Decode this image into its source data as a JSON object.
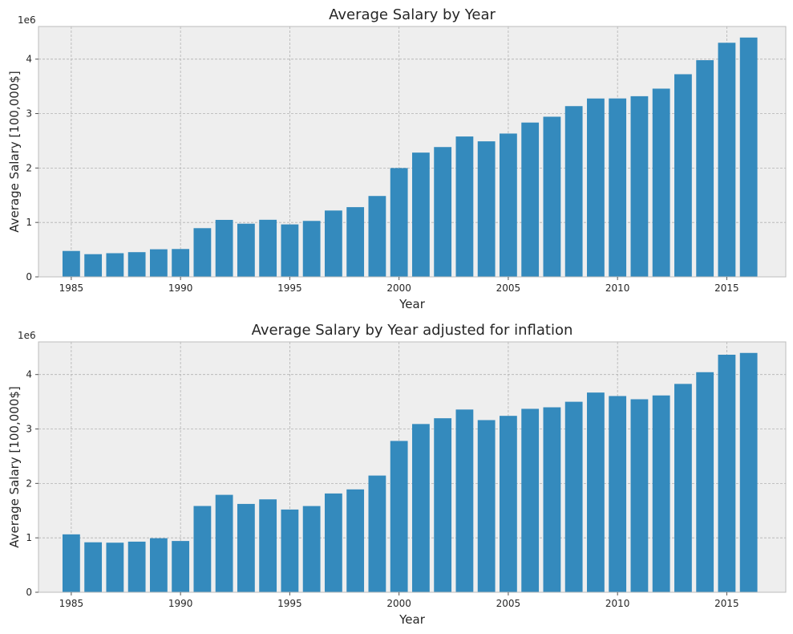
{
  "chart_data": [
    {
      "type": "bar",
      "title": "Average Salary by Year",
      "xlabel": "Year",
      "ylabel": "Average Salary [100,000$]",
      "y_offset_label": "1e6",
      "x": [
        1985,
        1986,
        1987,
        1988,
        1989,
        1990,
        1991,
        1992,
        1993,
        1994,
        1995,
        1996,
        1997,
        1998,
        1999,
        2000,
        2001,
        2002,
        2003,
        2004,
        2005,
        2006,
        2007,
        2008,
        2009,
        2010,
        2011,
        2012,
        2013,
        2014,
        2015,
        2016
      ],
      "values": [
        476000,
        417000,
        435000,
        454000,
        507000,
        512000,
        895000,
        1047000,
        977000,
        1049000,
        964000,
        1028000,
        1219000,
        1281000,
        1486000,
        1999000,
        2283000,
        2385000,
        2579000,
        2490000,
        2633000,
        2835000,
        2942000,
        3137000,
        3277000,
        3278000,
        3319000,
        3458000,
        3723000,
        3981000,
        4301000,
        4397000
      ],
      "xlim": [
        1983.5,
        2017.7
      ],
      "ylim": [
        0,
        4600000
      ],
      "xticks": [
        1985,
        1990,
        1995,
        2000,
        2005,
        2010,
        2015
      ],
      "yticks": [
        0,
        1000000,
        2000000,
        3000000,
        4000000
      ],
      "ytick_labels": [
        "0",
        "1",
        "2",
        "3",
        "4"
      ],
      "grid": true,
      "bar_color": "#348abd",
      "background_color": "#eeeeee"
    },
    {
      "type": "bar",
      "title": "Average Salary by Year adjusted for inflation",
      "xlabel": "Year",
      "ylabel": "Average Salary [100,000$]",
      "y_offset_label": "1e6",
      "x": [
        1985,
        1986,
        1987,
        1988,
        1989,
        1990,
        1991,
        1992,
        1993,
        1994,
        1995,
        1996,
        1997,
        1998,
        1999,
        2000,
        2001,
        2002,
        2003,
        2004,
        2005,
        2006,
        2007,
        2008,
        2009,
        2010,
        2011,
        2012,
        2013,
        2014,
        2015,
        2016
      ],
      "values": [
        1064000,
        918000,
        911000,
        930000,
        993000,
        942000,
        1585000,
        1790000,
        1623000,
        1707000,
        1520000,
        1584000,
        1815000,
        1890000,
        2144000,
        2780000,
        3091000,
        3197000,
        3357000,
        3163000,
        3241000,
        3370000,
        3398000,
        3500000,
        3669000,
        3605000,
        3546000,
        3616000,
        3828000,
        4043000,
        4364000,
        4397000
      ],
      "xlim": [
        1983.5,
        2017.7
      ],
      "ylim": [
        0,
        4600000
      ],
      "xticks": [
        1985,
        1990,
        1995,
        2000,
        2005,
        2010,
        2015
      ],
      "yticks": [
        0,
        1000000,
        2000000,
        3000000,
        4000000
      ],
      "ytick_labels": [
        "0",
        "1",
        "2",
        "3",
        "4"
      ],
      "grid": true,
      "bar_color": "#348abd",
      "background_color": "#eeeeee"
    }
  ]
}
